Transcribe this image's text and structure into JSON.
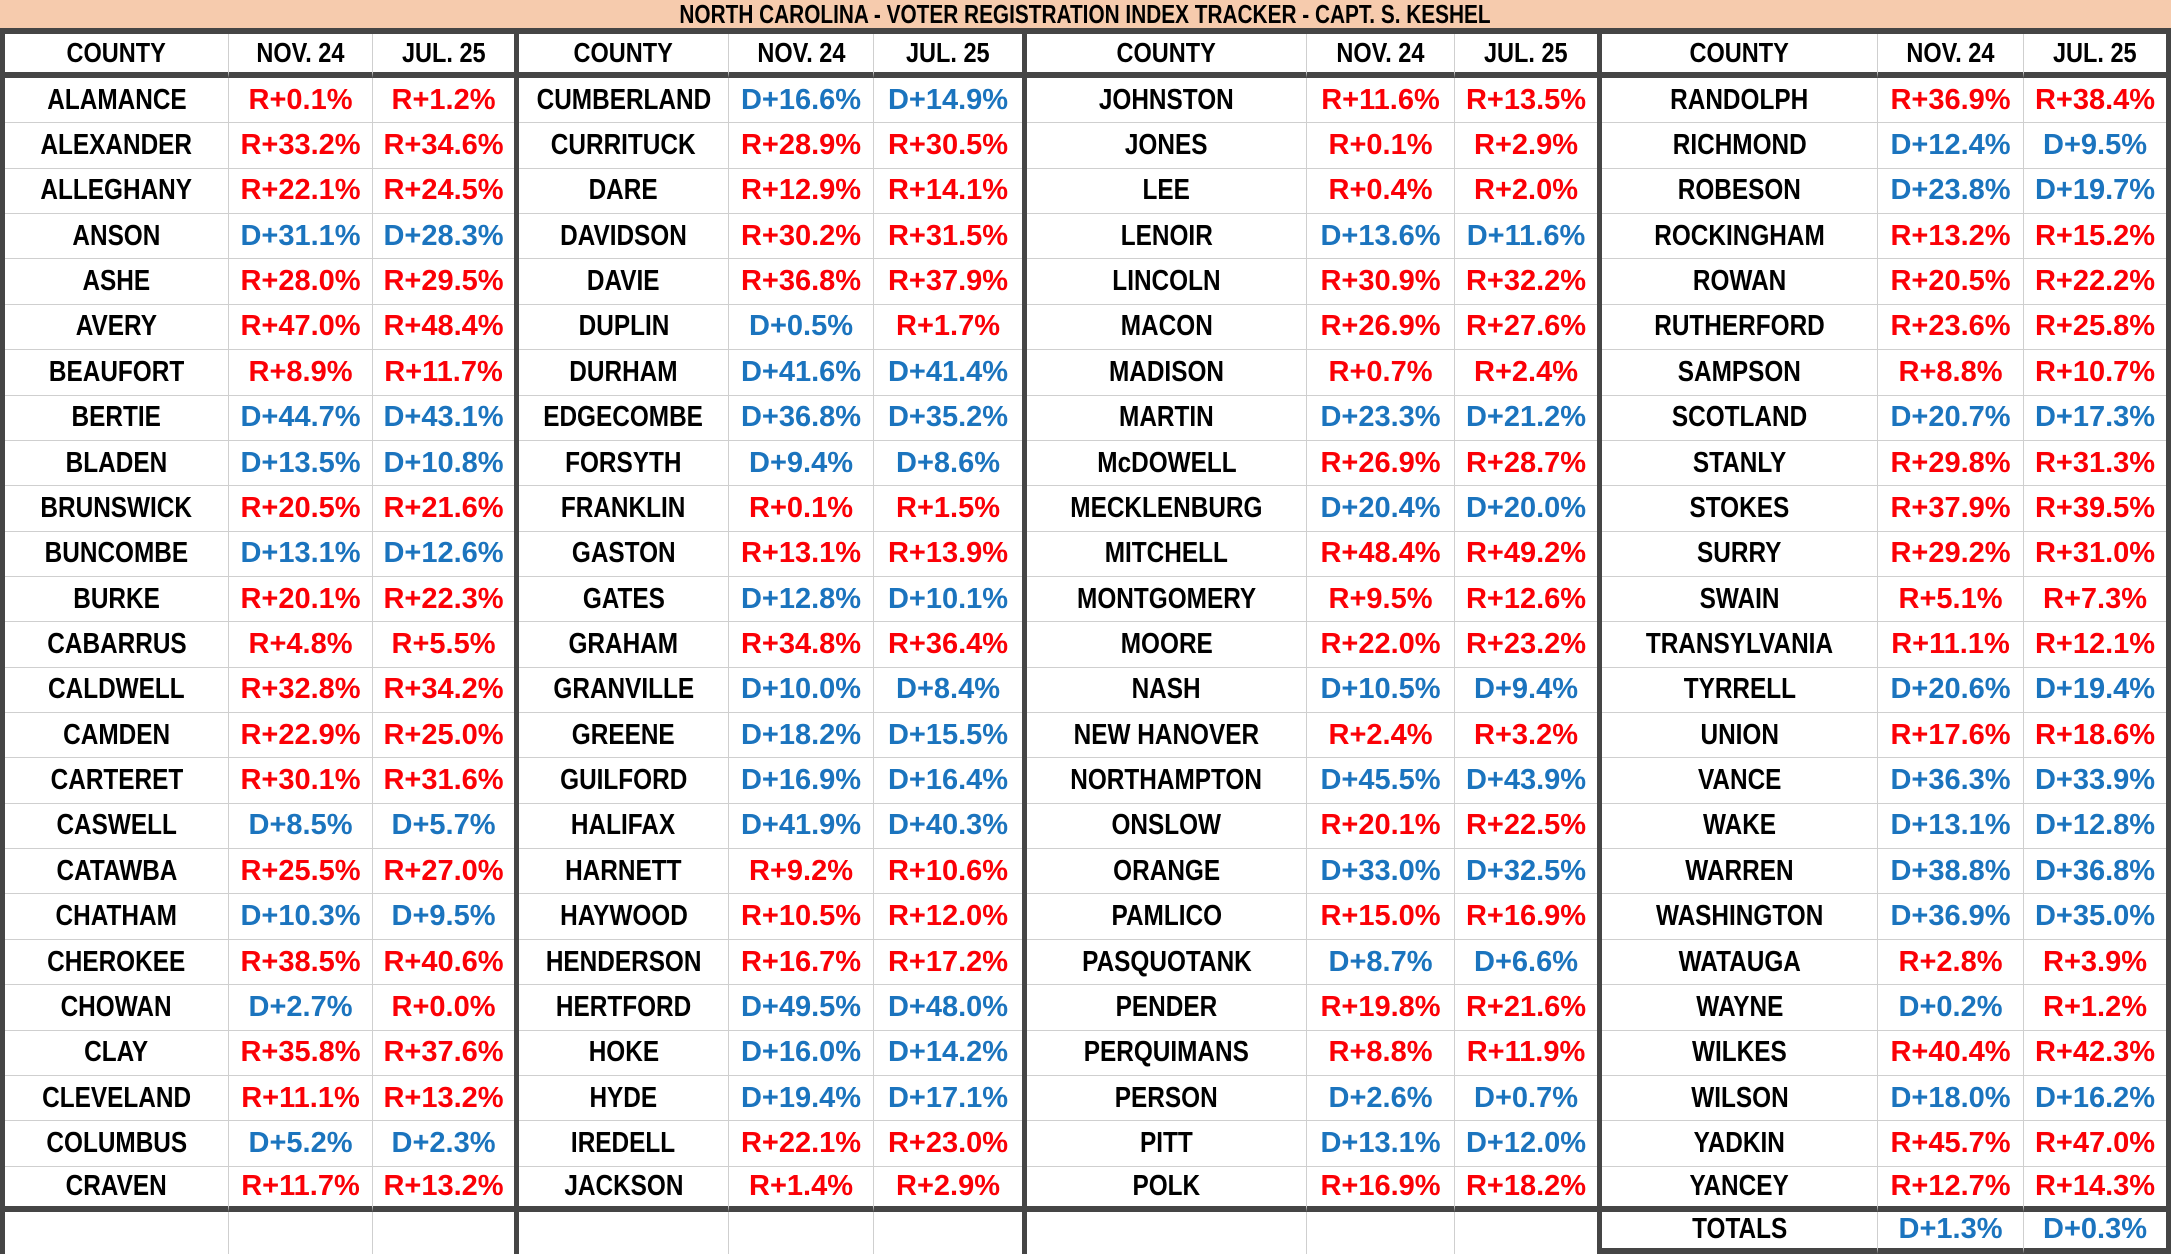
{
  "title": "NORTH CAROLINA - VOTER REGISTRATION INDEX TRACKER - CAPT. S. KESHEL",
  "colors": {
    "republican": "#FB0006",
    "democrat": "#1B74BE",
    "title_bg": "#F6CBAD",
    "thick_border": "#454545",
    "thin_border": "#CFCFCF"
  },
  "chart_data": {
    "type": "table",
    "column_headers": [
      "COUNTY",
      "NOV. 24",
      "JUL. 25"
    ],
    "groups": [
      {
        "rows": [
          [
            "ALAMANCE",
            "R+0.1%",
            "R+1.2%"
          ],
          [
            "ALEXANDER",
            "R+33.2%",
            "R+34.6%"
          ],
          [
            "ALLEGHANY",
            "R+22.1%",
            "R+24.5%"
          ],
          [
            "ANSON",
            "D+31.1%",
            "D+28.3%"
          ],
          [
            "ASHE",
            "R+28.0%",
            "R+29.5%"
          ],
          [
            "AVERY",
            "R+47.0%",
            "R+48.4%"
          ],
          [
            "BEAUFORT",
            "R+8.9%",
            "R+11.7%"
          ],
          [
            "BERTIE",
            "D+44.7%",
            "D+43.1%"
          ],
          [
            "BLADEN",
            "D+13.5%",
            "D+10.8%"
          ],
          [
            "BRUNSWICK",
            "R+20.5%",
            "R+21.6%"
          ],
          [
            "BUNCOMBE",
            "D+13.1%",
            "D+12.6%"
          ],
          [
            "BURKE",
            "R+20.1%",
            "R+22.3%"
          ],
          [
            "CABARRUS",
            "R+4.8%",
            "R+5.5%"
          ],
          [
            "CALDWELL",
            "R+32.8%",
            "R+34.2%"
          ],
          [
            "CAMDEN",
            "R+22.9%",
            "R+25.0%"
          ],
          [
            "CARTERET",
            "R+30.1%",
            "R+31.6%"
          ],
          [
            "CASWELL",
            "D+8.5%",
            "D+5.7%"
          ],
          [
            "CATAWBA",
            "R+25.5%",
            "R+27.0%"
          ],
          [
            "CHATHAM",
            "D+10.3%",
            "D+9.5%"
          ],
          [
            "CHEROKEE",
            "R+38.5%",
            "R+40.6%"
          ],
          [
            "CHOWAN",
            "D+2.7%",
            "R+0.0%"
          ],
          [
            "CLAY",
            "R+35.8%",
            "R+37.6%"
          ],
          [
            "CLEVELAND",
            "R+11.1%",
            "R+13.2%"
          ],
          [
            "COLUMBUS",
            "D+5.2%",
            "D+2.3%"
          ],
          [
            "CRAVEN",
            "R+11.7%",
            "R+13.2%"
          ]
        ],
        "footer": null
      },
      {
        "rows": [
          [
            "CUMBERLAND",
            "D+16.6%",
            "D+14.9%"
          ],
          [
            "CURRITUCK",
            "R+28.9%",
            "R+30.5%"
          ],
          [
            "DARE",
            "R+12.9%",
            "R+14.1%"
          ],
          [
            "DAVIDSON",
            "R+30.2%",
            "R+31.5%"
          ],
          [
            "DAVIE",
            "R+36.8%",
            "R+37.9%"
          ],
          [
            "DUPLIN",
            "D+0.5%",
            "R+1.7%"
          ],
          [
            "DURHAM",
            "D+41.6%",
            "D+41.4%"
          ],
          [
            "EDGECOMBE",
            "D+36.8%",
            "D+35.2%"
          ],
          [
            "FORSYTH",
            "D+9.4%",
            "D+8.6%"
          ],
          [
            "FRANKLIN",
            "R+0.1%",
            "R+1.5%"
          ],
          [
            "GASTON",
            "R+13.1%",
            "R+13.9%"
          ],
          [
            "GATES",
            "D+12.8%",
            "D+10.1%"
          ],
          [
            "GRAHAM",
            "R+34.8%",
            "R+36.4%"
          ],
          [
            "GRANVILLE",
            "D+10.0%",
            "D+8.4%"
          ],
          [
            "GREENE",
            "D+18.2%",
            "D+15.5%"
          ],
          [
            "GUILFORD",
            "D+16.9%",
            "D+16.4%"
          ],
          [
            "HALIFAX",
            "D+41.9%",
            "D+40.3%"
          ],
          [
            "HARNETT",
            "R+9.2%",
            "R+10.6%"
          ],
          [
            "HAYWOOD",
            "R+10.5%",
            "R+12.0%"
          ],
          [
            "HENDERSON",
            "R+16.7%",
            "R+17.2%"
          ],
          [
            "HERTFORD",
            "D+49.5%",
            "D+48.0%"
          ],
          [
            "HOKE",
            "D+16.0%",
            "D+14.2%"
          ],
          [
            "HYDE",
            "D+19.4%",
            "D+17.1%"
          ],
          [
            "IREDELL",
            "R+22.1%",
            "R+23.0%"
          ],
          [
            "JACKSON",
            "R+1.4%",
            "R+2.9%"
          ]
        ],
        "footer": null
      },
      {
        "rows": [
          [
            "JOHNSTON",
            "R+11.6%",
            "R+13.5%"
          ],
          [
            "JONES",
            "R+0.1%",
            "R+2.9%"
          ],
          [
            "LEE",
            "R+0.4%",
            "R+2.0%"
          ],
          [
            "LENOIR",
            "D+13.6%",
            "D+11.6%"
          ],
          [
            "LINCOLN",
            "R+30.9%",
            "R+32.2%"
          ],
          [
            "MACON",
            "R+26.9%",
            "R+27.6%"
          ],
          [
            "MADISON",
            "R+0.7%",
            "R+2.4%"
          ],
          [
            "MARTIN",
            "D+23.3%",
            "D+21.2%"
          ],
          [
            "McDOWELL",
            "R+26.9%",
            "R+28.7%"
          ],
          [
            "MECKLENBURG",
            "D+20.4%",
            "D+20.0%"
          ],
          [
            "MITCHELL",
            "R+48.4%",
            "R+49.2%"
          ],
          [
            "MONTGOMERY",
            "R+9.5%",
            "R+12.6%"
          ],
          [
            "MOORE",
            "R+22.0%",
            "R+23.2%"
          ],
          [
            "NASH",
            "D+10.5%",
            "D+9.4%"
          ],
          [
            "NEW HANOVER",
            "R+2.4%",
            "R+3.2%"
          ],
          [
            "NORTHAMPTON",
            "D+45.5%",
            "D+43.9%"
          ],
          [
            "ONSLOW",
            "R+20.1%",
            "R+22.5%"
          ],
          [
            "ORANGE",
            "D+33.0%",
            "D+32.5%"
          ],
          [
            "PAMLICO",
            "R+15.0%",
            "R+16.9%"
          ],
          [
            "PASQUOTANK",
            "D+8.7%",
            "D+6.6%"
          ],
          [
            "PENDER",
            "R+19.8%",
            "R+21.6%"
          ],
          [
            "PERQUIMANS",
            "R+8.8%",
            "R+11.9%"
          ],
          [
            "PERSON",
            "D+2.6%",
            "D+0.7%"
          ],
          [
            "PITT",
            "D+13.1%",
            "D+12.0%"
          ],
          [
            "POLK",
            "R+16.9%",
            "R+18.2%"
          ]
        ],
        "footer": null
      },
      {
        "rows": [
          [
            "RANDOLPH",
            "R+36.9%",
            "R+38.4%"
          ],
          [
            "RICHMOND",
            "D+12.4%",
            "D+9.5%"
          ],
          [
            "ROBESON",
            "D+23.8%",
            "D+19.7%"
          ],
          [
            "ROCKINGHAM",
            "R+13.2%",
            "R+15.2%"
          ],
          [
            "ROWAN",
            "R+20.5%",
            "R+22.2%"
          ],
          [
            "RUTHERFORD",
            "R+23.6%",
            "R+25.8%"
          ],
          [
            "SAMPSON",
            "R+8.8%",
            "R+10.7%"
          ],
          [
            "SCOTLAND",
            "D+20.7%",
            "D+17.3%"
          ],
          [
            "STANLY",
            "R+29.8%",
            "R+31.3%"
          ],
          [
            "STOKES",
            "R+37.9%",
            "R+39.5%"
          ],
          [
            "SURRY",
            "R+29.2%",
            "R+31.0%"
          ],
          [
            "SWAIN",
            "R+5.1%",
            "R+7.3%"
          ],
          [
            "TRANSYLVANIA",
            "R+11.1%",
            "R+12.1%"
          ],
          [
            "TYRRELL",
            "D+20.6%",
            "D+19.4%"
          ],
          [
            "UNION",
            "R+17.6%",
            "R+18.6%"
          ],
          [
            "VANCE",
            "D+36.3%",
            "D+33.9%"
          ],
          [
            "WAKE",
            "D+13.1%",
            "D+12.8%"
          ],
          [
            "WARREN",
            "D+38.8%",
            "D+36.8%"
          ],
          [
            "WASHINGTON",
            "D+36.9%",
            "D+35.0%"
          ],
          [
            "WATAUGA",
            "R+2.8%",
            "R+3.9%"
          ],
          [
            "WAYNE",
            "D+0.2%",
            "R+1.2%"
          ],
          [
            "WILKES",
            "R+40.4%",
            "R+42.3%"
          ],
          [
            "WILSON",
            "D+18.0%",
            "D+16.2%"
          ],
          [
            "YADKIN",
            "R+45.7%",
            "R+47.0%"
          ],
          [
            "YANCEY",
            "R+12.7%",
            "R+14.3%"
          ]
        ],
        "footer": [
          "TOTALS",
          "D+1.3%",
          "D+0.3%"
        ]
      }
    ]
  }
}
